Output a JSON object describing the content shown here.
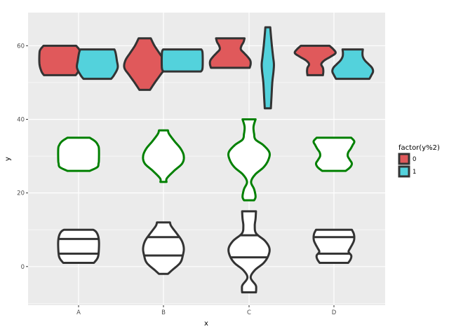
{
  "chart_data": {
    "type": "violin",
    "title": "",
    "xlabel": "x",
    "ylabel": "y",
    "categories": [
      "A",
      "B",
      "C",
      "D"
    ],
    "ylim": [
      -10.5,
      69
    ],
    "yticks": [
      0,
      20,
      40,
      60
    ],
    "ytick_labels": [
      "0",
      "20",
      "40",
      "60"
    ],
    "grid": true,
    "legend": {
      "title": "factor(y%2)",
      "position": "right",
      "entries": [
        {
          "label": "0",
          "color": "#e0595b"
        },
        {
          "label": "1",
          "color": "#53d2dc"
        }
      ]
    },
    "series": [
      {
        "name": "bottom group (white, outline #333333)",
        "fill": "#ffffff",
        "stroke": "#333333",
        "violins": [
          {
            "category": "A",
            "offset": 0,
            "profile": [
              [
                1,
                0.75
              ],
              [
                2,
                0.9
              ],
              [
                3,
                0.97
              ],
              [
                5,
                1.0
              ],
              [
                7,
                1.0
              ],
              [
                8.5,
                0.95
              ],
              [
                9.5,
                0.85
              ],
              [
                10,
                0.72
              ]
            ],
            "quantiles": [
              3.5,
              7.5
            ]
          },
          {
            "category": "B",
            "offset": 0,
            "profile": [
              [
                -2,
                0.22
              ],
              [
                -1,
                0.42
              ],
              [
                1,
                0.82
              ],
              [
                3,
                0.95
              ],
              [
                5,
                1.0
              ],
              [
                7,
                0.9
              ],
              [
                9,
                0.65
              ],
              [
                11,
                0.38
              ],
              [
                12,
                0.32
              ]
            ],
            "quantiles": [
              3,
              8
            ]
          },
          {
            "category": "C",
            "offset": 0,
            "profile": [
              [
                -7,
                0.34
              ],
              [
                -6,
                0.35
              ],
              [
                -5,
                0.32
              ],
              [
                -3,
                0.08
              ],
              [
                -1,
                0.28
              ],
              [
                1,
                0.72
              ],
              [
                3,
                0.95
              ],
              [
                5,
                1.0
              ],
              [
                7,
                0.78
              ],
              [
                9,
                0.35
              ],
              [
                11,
                0.28
              ],
              [
                13,
                0.32
              ],
              [
                15,
                0.34
              ]
            ],
            "quantiles": [
              2.5,
              8.5
            ]
          },
          {
            "category": "D",
            "offset": 0,
            "profile": [
              [
                1,
                0.7
              ],
              [
                2,
                0.82
              ],
              [
                3,
                0.85
              ],
              [
                4,
                0.72
              ],
              [
                5,
                0.8
              ],
              [
                6,
                0.9
              ],
              [
                7,
                0.98
              ],
              [
                8,
                1.0
              ],
              [
                9,
                0.97
              ],
              [
                10,
                0.88
              ]
            ],
            "quantiles": [
              3.5,
              8
            ]
          }
        ]
      },
      {
        "name": "middle group (white, outline #008000)",
        "fill": "#ffffff",
        "stroke": "#008000",
        "violins": [
          {
            "category": "A",
            "offset": 0,
            "profile": [
              [
                26,
                0.55
              ],
              [
                27,
                0.92
              ],
              [
                28,
                0.98
              ],
              [
                29,
                1.0
              ],
              [
                32,
                1.0
              ],
              [
                33,
                0.95
              ],
              [
                34,
                0.82
              ],
              [
                35,
                0.55
              ]
            ],
            "quantiles": []
          },
          {
            "category": "B",
            "offset": 0,
            "profile": [
              [
                23,
                0.15
              ],
              [
                24,
                0.17
              ],
              [
                26,
                0.52
              ],
              [
                28,
                0.92
              ],
              [
                30,
                1.0
              ],
              [
                32,
                0.85
              ],
              [
                34,
                0.55
              ],
              [
                36,
                0.28
              ],
              [
                37,
                0.22
              ]
            ],
            "quantiles": []
          },
          {
            "category": "C",
            "offset": 0,
            "profile": [
              [
                18,
                0.25
              ],
              [
                19,
                0.32
              ],
              [
                21,
                0.25
              ],
              [
                23,
                0.1
              ],
              [
                25,
                0.3
              ],
              [
                27,
                0.72
              ],
              [
                29,
                0.95
              ],
              [
                31,
                1.0
              ],
              [
                33,
                0.7
              ],
              [
                34.5,
                0.32
              ],
              [
                36,
                0.25
              ],
              [
                38,
                0.22
              ],
              [
                40,
                0.32
              ]
            ],
            "quantiles": []
          },
          {
            "category": "D",
            "offset": 0,
            "profile": [
              [
                26,
                0.58
              ],
              [
                27,
                0.8
              ],
              [
                28,
                0.88
              ],
              [
                29,
                0.78
              ],
              [
                30,
                0.68
              ],
              [
                31,
                0.7
              ],
              [
                32,
                0.82
              ],
              [
                33,
                0.92
              ],
              [
                34,
                1.0
              ],
              [
                35,
                0.85
              ]
            ],
            "quantiles": []
          }
        ]
      },
      {
        "name": "0",
        "fill": "#e0595b",
        "stroke": "#333333",
        "violins": [
          {
            "category": "A",
            "offset": -0.22,
            "profile": [
              [
                52,
                0.78
              ],
              [
                53,
                0.9
              ],
              [
                55,
                1.0
              ],
              [
                58,
                1.0
              ],
              [
                59,
                0.95
              ],
              [
                60,
                0.8
              ]
            ],
            "quantiles": []
          },
          {
            "category": "B",
            "offset": -0.22,
            "profile": [
              [
                48,
                0.26
              ],
              [
                50,
                0.5
              ],
              [
                52,
                0.76
              ],
              [
                54,
                1.0
              ],
              [
                56,
                0.95
              ],
              [
                58,
                0.72
              ],
              [
                60,
                0.48
              ],
              [
                62,
                0.3
              ]
            ],
            "quantiles": []
          },
          {
            "category": "C",
            "offset": -0.22,
            "profile": [
              [
                54,
                0.95
              ],
              [
                55,
                1.0
              ],
              [
                56,
                0.98
              ],
              [
                57,
                0.85
              ],
              [
                58,
                0.68
              ],
              [
                59,
                0.52
              ],
              [
                60,
                0.55
              ],
              [
                61,
                0.65
              ],
              [
                62,
                0.7
              ]
            ],
            "quantiles": []
          },
          {
            "category": "D",
            "offset": -0.22,
            "profile": [
              [
                52,
                0.38
              ],
              [
                53,
                0.4
              ],
              [
                54,
                0.38
              ],
              [
                55,
                0.3
              ],
              [
                56,
                0.45
              ],
              [
                57,
                0.75
              ],
              [
                58,
                1.0
              ],
              [
                59,
                0.9
              ],
              [
                60,
                0.7
              ]
            ],
            "quantiles": []
          }
        ]
      },
      {
        "name": "1",
        "fill": "#53d2dc",
        "stroke": "#333333",
        "violins": [
          {
            "category": "A",
            "offset": 0.22,
            "profile": [
              [
                51,
                0.68
              ],
              [
                52,
                0.82
              ],
              [
                54,
                1.0
              ],
              [
                56,
                0.96
              ],
              [
                58,
                0.9
              ],
              [
                59,
                0.84
              ]
            ],
            "quantiles": []
          },
          {
            "category": "B",
            "offset": 0.22,
            "profile": [
              [
                53,
                0.92
              ],
              [
                54,
                1.0
              ],
              [
                58,
                1.0
              ],
              [
                59,
                0.94
              ]
            ],
            "quantiles": []
          },
          {
            "category": "C",
            "offset": 0.22,
            "profile": [
              [
                43,
                0.15
              ],
              [
                46,
                0.18
              ],
              [
                50,
                0.22
              ],
              [
                53,
                0.28
              ],
              [
                55,
                0.3
              ],
              [
                57,
                0.26
              ],
              [
                60,
                0.2
              ],
              [
                63,
                0.15
              ],
              [
                65,
                0.12
              ]
            ],
            "quantiles": []
          },
          {
            "category": "D",
            "offset": 0.22,
            "profile": [
              [
                51,
                0.82
              ],
              [
                52,
                0.92
              ],
              [
                53,
                1.0
              ],
              [
                54,
                0.95
              ],
              [
                55,
                0.78
              ],
              [
                56,
                0.6
              ],
              [
                57,
                0.5
              ],
              [
                58,
                0.48
              ],
              [
                59,
                0.5
              ]
            ],
            "quantiles": []
          }
        ]
      }
    ]
  }
}
